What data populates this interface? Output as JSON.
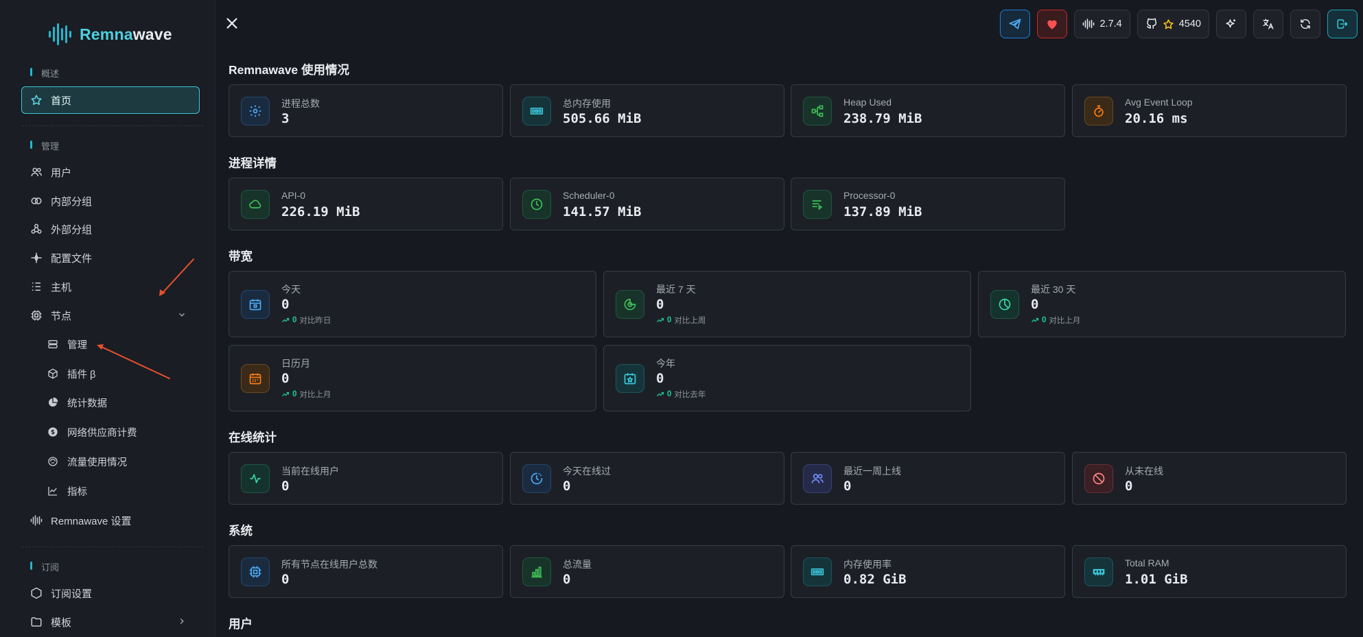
{
  "sidebar": {
    "logo": {
      "prefix": "Remna",
      "suffix": "wave"
    },
    "sections": {
      "overview": "概述",
      "management": "管理",
      "subscription": "订阅"
    },
    "items": {
      "home": "首页",
      "users": "用户",
      "internal_squads": "内部分组",
      "external_squads": "外部分组",
      "config_profiles": "配置文件",
      "hosts": "主机",
      "nodes": "节点",
      "nodes_manage": "管理",
      "nodes_plugins": "插件 β",
      "nodes_stats": "统计数据",
      "nodes_billing": "网络供应商计费",
      "nodes_traffic": "流量使用情况",
      "nodes_metrics": "指标",
      "settings": "Remnawave 设置",
      "sub_settings": "订阅设置",
      "templates": "模板"
    }
  },
  "topbar": {
    "version": "2.7.4",
    "stars": "4540"
  },
  "sections": {
    "usage": "Remnawave 使用情况",
    "process": "进程详情",
    "bandwidth": "带宽",
    "online": "在线统计",
    "system": "系统",
    "users": "用户"
  },
  "usage": [
    {
      "label": "进程总数",
      "value": "3"
    },
    {
      "label": "总内存使用",
      "value": "505.66 MiB"
    },
    {
      "label": "Heap Used",
      "value": "238.79 MiB"
    },
    {
      "label": "Avg Event Loop",
      "value": "20.16 ms"
    }
  ],
  "process": [
    {
      "label": "API-0",
      "value": "226.19 MiB"
    },
    {
      "label": "Scheduler-0",
      "value": "141.57 MiB"
    },
    {
      "label": "Processor-0",
      "value": "137.89 MiB"
    }
  ],
  "bandwidth": [
    {
      "label": "今天",
      "value": "0",
      "trend": "0",
      "compare": "对比昨日"
    },
    {
      "label": "最近 7 天",
      "value": "0",
      "trend": "0",
      "compare": "对比上周"
    },
    {
      "label": "最近 30 天",
      "value": "0",
      "trend": "0",
      "compare": "对比上月"
    },
    {
      "label": "日历月",
      "value": "0",
      "trend": "0",
      "compare": "对比上月"
    },
    {
      "label": "今年",
      "value": "0",
      "trend": "0",
      "compare": "对比去年"
    }
  ],
  "online": [
    {
      "label": "当前在线用户",
      "value": "0"
    },
    {
      "label": "今天在线过",
      "value": "0"
    },
    {
      "label": "最近一周上线",
      "value": "0"
    },
    {
      "label": "从未在线",
      "value": "0"
    }
  ],
  "system": [
    {
      "label": "所有节点在线用户总数",
      "value": "0"
    },
    {
      "label": "总流量",
      "value": "0"
    },
    {
      "label": "内存使用率",
      "value": "0.82 GiB"
    },
    {
      "label": "Total RAM",
      "value": "1.01 GiB"
    }
  ],
  "colors": {
    "accent": "#22b8cf",
    "arrow": "#e8512f"
  }
}
